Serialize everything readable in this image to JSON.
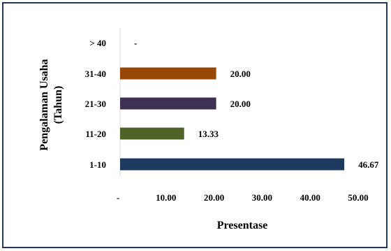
{
  "chart_data": {
    "type": "bar",
    "orientation": "horizontal",
    "categories": [
      "1-10",
      "11-20",
      "21-30",
      "31-40",
      "> 40"
    ],
    "values": [
      46.67,
      13.33,
      20.0,
      20.0,
      0
    ],
    "data_labels": [
      "46.67",
      "13.33",
      "20.00",
      "20.00",
      "-"
    ],
    "bar_colors": [
      "#1f3a5f",
      "#4f6228",
      "#3f3151",
      "#984806",
      "#ffffff"
    ],
    "xlim": [
      0,
      50
    ],
    "x_ticks": [
      0,
      10,
      20,
      30,
      40,
      50
    ],
    "x_tick_labels": [
      "-",
      "10.00",
      "20.00",
      "30.00",
      "40.00",
      "50.00"
    ],
    "xlabel": "Presentase",
    "ylabel_line1": "Pengalaman Usaha",
    "ylabel_line2": "(Tahun)",
    "grid": false,
    "legend": "none"
  },
  "colors": {
    "frame_border": "#1f3864",
    "axis_line": "#d9d9d9",
    "text": "#000000"
  }
}
